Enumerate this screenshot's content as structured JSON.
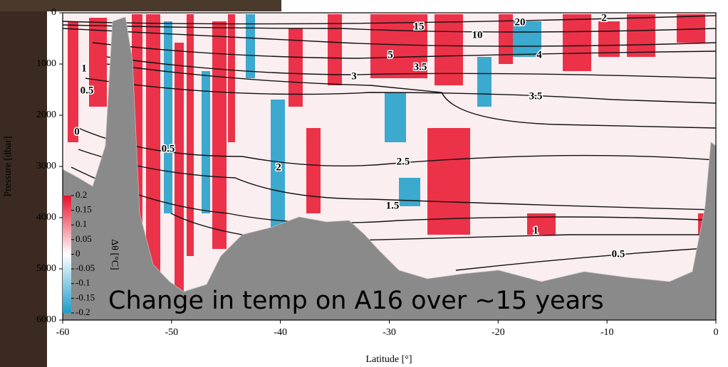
{
  "chart_data": {
    "type": "section",
    "xlabel": "Latitude [°]",
    "ylabel": "Pressure [dbar]",
    "xlim": [
      -60,
      0
    ],
    "xticks": [
      -60,
      -50,
      -40,
      -30,
      -20,
      -10,
      0
    ],
    "ylim": [
      0,
      6000
    ],
    "yticks": [
      0,
      1000,
      2000,
      3000,
      4000,
      5000,
      6000
    ],
    "y_inverted": true,
    "colorbar_label": "Δθ [°C]",
    "colorbar_lim": [
      -0.2,
      0.2
    ],
    "colorbar_ticks": [
      0.2,
      0.15,
      0.1,
      0.05,
      0,
      -0.05,
      -0.1,
      -0.15,
      -0.2
    ],
    "colorbar_colors": [
      "#e8102c",
      "#ffffff",
      "#1a9cc8"
    ],
    "contour_labels": [
      "15",
      "10",
      "5",
      "20",
      "2",
      "4",
      "3.5",
      "3",
      "3.5",
      "2.5",
      "2",
      "1.5",
      "1",
      "0.5",
      "0",
      "0.5",
      "1",
      "0.5"
    ],
    "annotation": "Change in temp on A16 over ~15 years",
    "annotation_color": "#3b3fae"
  }
}
